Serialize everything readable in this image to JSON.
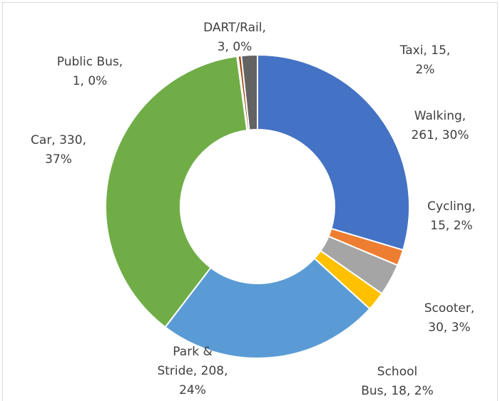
{
  "chart_data": {
    "type": "donut",
    "categories": [
      "Walking",
      "Cycling",
      "Scooter",
      "School Bus",
      "Park & Stride",
      "Car",
      "Public Bus",
      "DART/Rail",
      "Taxi"
    ],
    "values": [
      261,
      15,
      30,
      18,
      208,
      330,
      1,
      3,
      15
    ],
    "value_labels": [
      [
        "Walking,",
        "261, 30%"
      ],
      [
        "Cycling,",
        "15, 2%"
      ],
      [
        "Scooter,",
        "30, 3%"
      ],
      [
        "School",
        "Bus, 18, 2%"
      ],
      [
        "Park &",
        "Stride, 208,",
        "24%"
      ],
      [
        "Car, 330,",
        "37%"
      ],
      [
        "Public Bus,",
        "1, 0%"
      ],
      [
        "DART/Rail,",
        "3, 0%"
      ],
      [
        "Taxi, 15,",
        "2%"
      ]
    ],
    "colors": [
      "#4472c4",
      "#ed7d31",
      "#a5a5a5",
      "#ffc000",
      "#5b9bd5",
      "#70ad47",
      "#264478",
      "#9e480e",
      "#636363"
    ]
  }
}
